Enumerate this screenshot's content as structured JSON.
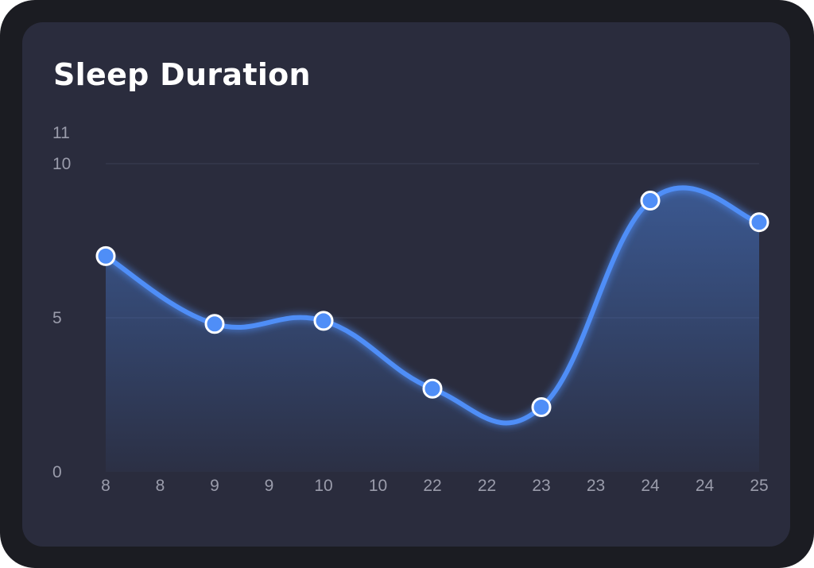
{
  "chart_data": {
    "type": "line",
    "title": "Sleep Duration",
    "xlabel": "",
    "ylabel": "",
    "x_tick_labels": [
      "8",
      "8",
      "9",
      "9",
      "10",
      "10",
      "22",
      "22",
      "23",
      "23",
      "24",
      "24",
      "25"
    ],
    "series": [
      {
        "x": [
          0,
          2,
          4,
          6,
          8,
          10,
          12
        ],
        "values": [
          7.0,
          4.8,
          4.9,
          2.7,
          2.1,
          8.8,
          8.1
        ]
      }
    ],
    "x_labels_of_points": [
      "8",
      "9",
      "10",
      "22",
      "23",
      "24",
      "25"
    ],
    "y_ticks": [
      0,
      5,
      10,
      11
    ],
    "ylim": [
      0,
      10
    ],
    "grid": true,
    "smooth": true,
    "legend": "none",
    "colors": {
      "line": "#4f8ef7",
      "marker_fill": "#4f8ef7",
      "marker_stroke": "#ffffff",
      "grid": "#3b3e52",
      "background": "#2a2c3d",
      "frame": "#1b1c22"
    }
  }
}
